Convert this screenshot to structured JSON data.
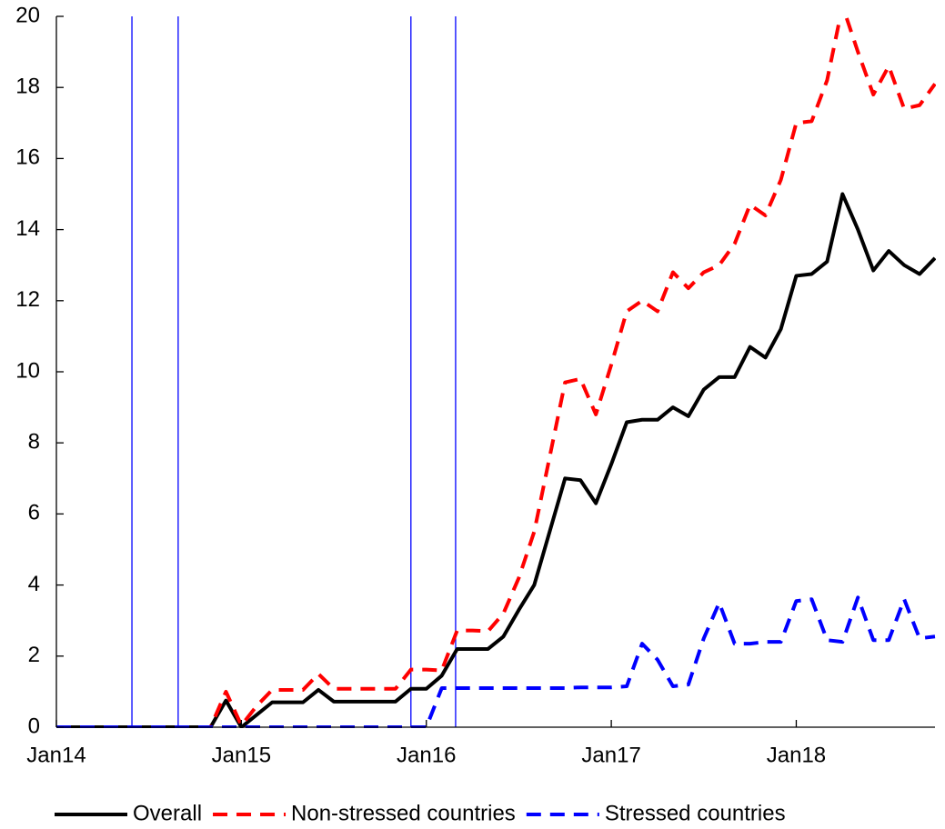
{
  "chart_data": {
    "type": "line",
    "x": [
      0,
      1,
      2,
      3,
      4,
      5,
      6,
      7,
      8,
      9,
      10,
      11,
      12,
      13,
      14,
      15,
      16,
      17,
      18,
      19,
      20,
      21,
      22,
      23,
      24,
      25,
      26,
      27,
      28,
      29,
      30,
      31,
      32,
      33,
      34,
      35,
      36,
      37,
      38,
      39,
      40,
      41,
      42,
      43,
      44,
      45,
      46,
      47,
      48,
      49,
      50,
      51,
      52,
      53,
      54,
      55,
      56,
      57
    ],
    "series": [
      {
        "name": "Overall",
        "color": "#000000",
        "dash": "solid",
        "values": [
          0,
          0,
          0,
          0,
          0,
          0,
          0,
          0,
          0,
          0,
          0,
          0.75,
          0,
          0.35,
          0.7,
          0.7,
          0.7,
          1.05,
          0.72,
          0.72,
          0.72,
          0.72,
          0.72,
          1.08,
          1.08,
          1.45,
          2.2,
          2.2,
          2.2,
          2.55,
          3.3,
          4.0,
          5.5,
          7.0,
          6.95,
          6.3,
          7.4,
          8.58,
          8.65,
          8.65,
          9.0,
          8.75,
          9.5,
          9.85,
          9.85,
          10.7,
          10.4,
          11.2,
          12.7,
          12.75,
          13.1,
          15.0,
          14.0,
          12.85,
          13.4,
          13.0,
          12.75,
          13.2
        ]
      },
      {
        "name": "Non-stressed countries",
        "color": "#ff0000",
        "dash": "dashed",
        "values": [
          0,
          0,
          0,
          0,
          0,
          0,
          0,
          0,
          0,
          0,
          0,
          1.0,
          0.05,
          0.6,
          1.05,
          1.05,
          1.05,
          1.5,
          1.08,
          1.08,
          1.08,
          1.08,
          1.08,
          1.62,
          1.62,
          1.6,
          2.72,
          2.72,
          2.7,
          3.2,
          4.2,
          5.5,
          7.6,
          9.7,
          9.8,
          8.8,
          10.2,
          11.7,
          12.0,
          11.7,
          12.8,
          12.35,
          12.8,
          13.0,
          13.6,
          14.7,
          14.4,
          15.4,
          17.0,
          17.05,
          18.2,
          20.3,
          19.0,
          17.8,
          18.6,
          17.4,
          17.5,
          18.1
        ]
      },
      {
        "name": "Stressed countries",
        "color": "#0000ff",
        "dash": "dashed",
        "values": [
          0,
          0,
          0,
          0,
          0,
          0,
          0,
          0,
          0,
          0,
          0,
          0,
          0,
          0,
          0,
          0,
          0,
          0,
          0,
          0,
          0,
          0,
          0,
          0,
          0,
          1.1,
          1.1,
          1.1,
          1.1,
          1.1,
          1.1,
          1.1,
          1.1,
          1.1,
          1.12,
          1.12,
          1.12,
          1.15,
          2.35,
          1.9,
          1.15,
          1.2,
          2.5,
          3.5,
          2.35,
          2.35,
          2.4,
          2.4,
          3.55,
          3.6,
          2.45,
          2.4,
          3.65,
          2.45,
          2.45,
          3.6,
          2.5,
          2.55
        ]
      }
    ],
    "vlines": [
      4.9,
      7.9,
      23,
      25.9
    ],
    "vline_color": "#0000ff",
    "xlim": [
      0,
      57
    ],
    "xticks": [
      {
        "value": 0,
        "label": "Jan14"
      },
      {
        "value": 12,
        "label": "Jan15"
      },
      {
        "value": 24,
        "label": "Jan16"
      },
      {
        "value": 36,
        "label": "Jan17"
      },
      {
        "value": 48,
        "label": "Jan18"
      }
    ],
    "ylim": [
      0,
      20
    ],
    "yticks": [
      0,
      2,
      4,
      6,
      8,
      10,
      12,
      14,
      16,
      18,
      20
    ],
    "legend": "bottom"
  }
}
